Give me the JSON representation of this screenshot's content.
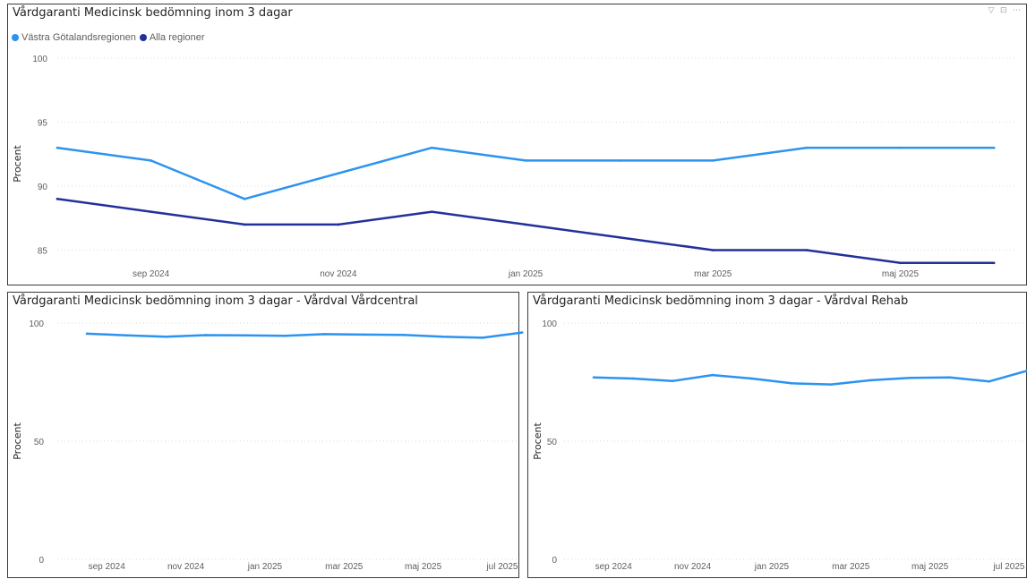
{
  "chart_data": [
    {
      "type": "line",
      "title": "Vårdgaranti Medicinsk bedömning inom 3 dagar",
      "ylabel": "Procent",
      "ylim": [
        83.5,
        100
      ],
      "yticks": [
        85,
        90,
        95,
        100
      ],
      "x_range": [
        0,
        15.3
      ],
      "xticks": [
        {
          "label": "sep 2024",
          "at": 1.5
        },
        {
          "label": "nov 2024",
          "at": 4.5
        },
        {
          "label": "jan 2025",
          "at": 7.5
        },
        {
          "label": "mar 2025",
          "at": 10.5
        },
        {
          "label": "maj 2025",
          "at": 13.5
        }
      ],
      "legend": "top-left",
      "grid": true,
      "series": [
        {
          "name": "Västra Götalandsregionen",
          "color": "#2b93f0",
          "values": [
            [
              0,
              93
            ],
            [
              1.5,
              92
            ],
            [
              3,
              89
            ],
            [
              4.5,
              91
            ],
            [
              6,
              93
            ],
            [
              7.5,
              92
            ],
            [
              9,
              92
            ],
            [
              10.5,
              92
            ],
            [
              12,
              93
            ],
            [
              13.5,
              93
            ],
            [
              15,
              93
            ]
          ]
        },
        {
          "name": "Alla regioner",
          "color": "#23309a",
          "values": [
            [
              0,
              89
            ],
            [
              1.5,
              88
            ],
            [
              3,
              87
            ],
            [
              4.5,
              87
            ],
            [
              6,
              88
            ],
            [
              7.5,
              87
            ],
            [
              9,
              86
            ],
            [
              10.5,
              85
            ],
            [
              12,
              85
            ],
            [
              13.5,
              84
            ],
            [
              15,
              84
            ]
          ]
        }
      ]
    },
    {
      "type": "line",
      "title": "Vårdgaranti Medicinsk bedömning inom 3 dagar - Vårdval Vårdcentral",
      "ylabel": "Procent",
      "ylim": [
        0,
        100
      ],
      "yticks": [
        0,
        50,
        100
      ],
      "x_range": [
        -0.25,
        11.25
      ],
      "xticks": [
        {
          "label": "sep 2024",
          "at": 1
        },
        {
          "label": "nov 2024",
          "at": 3
        },
        {
          "label": "jan 2025",
          "at": 5
        },
        {
          "label": "mar 2025",
          "at": 7
        },
        {
          "label": "maj 2025",
          "at": 9
        },
        {
          "label": "jul 2025",
          "at": 11
        }
      ],
      "grid": true,
      "series": [
        {
          "color": "#2b93f0",
          "values": [
            [
              0.5,
              95.5
            ],
            [
              1.5,
              94.8
            ],
            [
              2.5,
              94.2
            ],
            [
              3.5,
              94.9
            ],
            [
              4.5,
              94.8
            ],
            [
              5.5,
              94.6
            ],
            [
              6.5,
              95.3
            ],
            [
              7.5,
              95.1
            ],
            [
              8.5,
              95
            ],
            [
              9.5,
              94.2
            ],
            [
              10.5,
              93.8
            ],
            [
              11.5,
              96
            ]
          ]
        }
      ]
    },
    {
      "type": "line",
      "title": "Vårdgaranti Medicinsk bedömning inom 3 dagar - Vårdval Rehab",
      "ylabel": "Procent",
      "ylim": [
        0,
        100
      ],
      "yticks": [
        0,
        50,
        100
      ],
      "x_range": [
        -0.25,
        11.25
      ],
      "xticks": [
        {
          "label": "sep 2024",
          "at": 1
        },
        {
          "label": "nov 2024",
          "at": 3
        },
        {
          "label": "jan 2025",
          "at": 5
        },
        {
          "label": "mar 2025",
          "at": 7
        },
        {
          "label": "maj 2025",
          "at": 9
        },
        {
          "label": "jul 2025",
          "at": 11
        }
      ],
      "grid": true,
      "series": [
        {
          "color": "#2b93f0",
          "values": [
            [
              0.5,
              77
            ],
            [
              1.5,
              76.5
            ],
            [
              2.5,
              75.5
            ],
            [
              3.5,
              78
            ],
            [
              4.5,
              76.5
            ],
            [
              5.5,
              74.5
            ],
            [
              6.5,
              74
            ],
            [
              7.5,
              75.8
            ],
            [
              8.5,
              76.8
            ],
            [
              9.5,
              77
            ],
            [
              10.5,
              75.3
            ],
            [
              11.5,
              80
            ]
          ]
        }
      ]
    }
  ]
}
